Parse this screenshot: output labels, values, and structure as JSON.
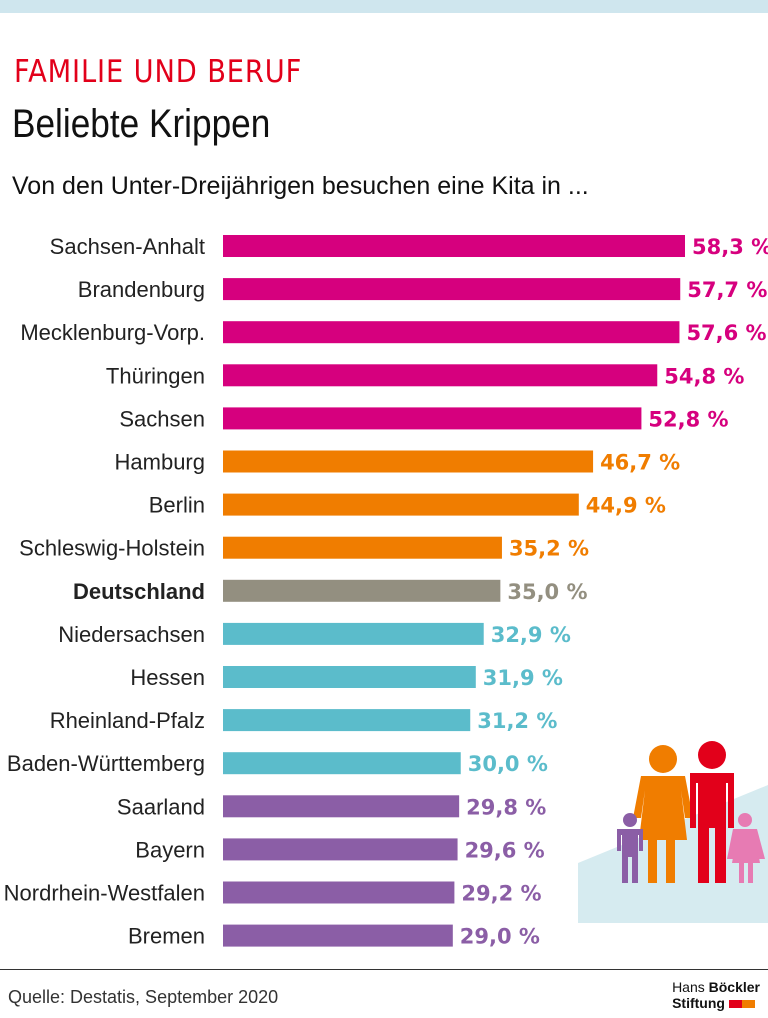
{
  "header": {
    "kicker": "FAMILIE UND BERUF",
    "title": "Beliebte Krippen",
    "subtitle": "Von den Unter-Dreijährigen besuchen eine Kita in ..."
  },
  "chart_data": {
    "type": "bar",
    "orientation": "horizontal",
    "xlim": [
      0,
      58.3
    ],
    "grid": false,
    "unit": "%",
    "categories": [
      "Sachsen-Anhalt",
      "Brandenburg",
      "Mecklenburg-Vorp.",
      "Thüringen",
      "Sachsen",
      "Hamburg",
      "Berlin",
      "Schleswig-Holstein",
      "Deutschland",
      "Niedersachsen",
      "Hessen",
      "Rheinland-Pfalz",
      "Baden-Württemberg",
      "Saarland",
      "Bayern",
      "Nordrhein-Westfalen",
      "Bremen"
    ],
    "values": [
      58.3,
      57.7,
      57.6,
      54.8,
      52.8,
      46.7,
      44.9,
      35.2,
      35.0,
      32.9,
      31.9,
      31.2,
      30.0,
      29.8,
      29.6,
      29.2,
      29.0
    ],
    "labels": [
      "58,3 %",
      "57,7 %",
      "57,6 %",
      "54,8 %",
      "52,8 %",
      "46,7 %",
      "44,9 %",
      "35,2 %",
      "35,0 %",
      "32,9 %",
      "31,9 %",
      "31,2 %",
      "30,0 %",
      "29,8 %",
      "29,6 %",
      "29,2 %",
      "29,0 %"
    ],
    "color_groups": [
      "magenta",
      "magenta",
      "magenta",
      "magenta",
      "magenta",
      "orange",
      "orange",
      "orange",
      "gray",
      "teal",
      "teal",
      "teal",
      "teal",
      "purple",
      "purple",
      "purple",
      "purple"
    ],
    "colors": {
      "magenta": "#d6007e",
      "orange": "#f07d00",
      "gray": "#938f80",
      "teal": "#5bbccb",
      "purple": "#8b5ea6"
    },
    "highlight": "Deutschland"
  },
  "footer": {
    "source": "Quelle: Destatis, September 2020",
    "logo_line1a": "Hans ",
    "logo_line1b": "Böckler",
    "logo_line2": "Stiftung"
  }
}
